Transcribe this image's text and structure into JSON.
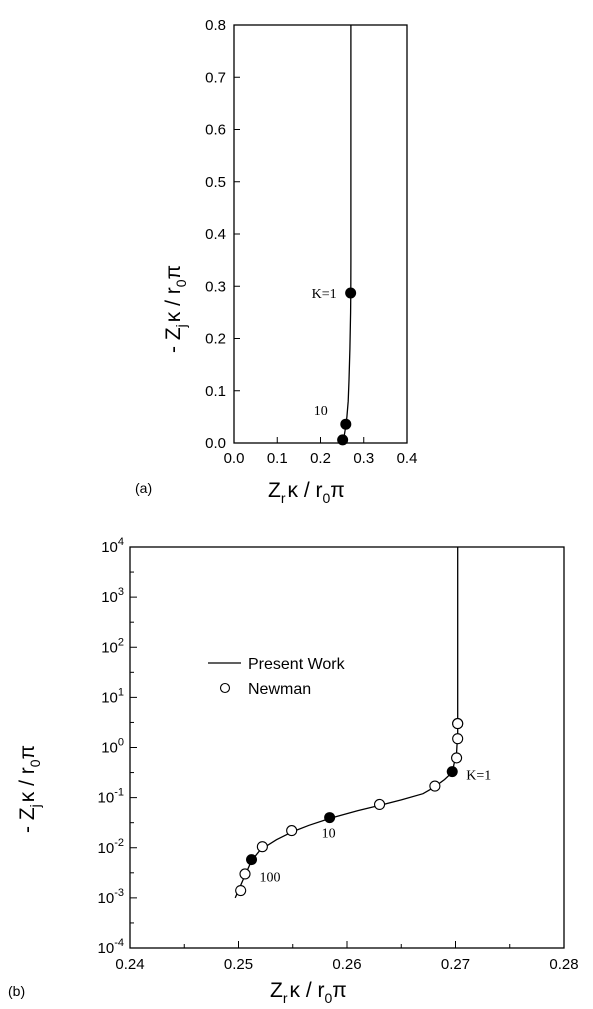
{
  "chart_data": [
    {
      "type": "line",
      "panel_label": "(a)",
      "xlim": [
        0.0,
        0.4
      ],
      "ylim": [
        0.0,
        0.8
      ],
      "x_ticks": [
        "0.0",
        "0.1",
        "0.2",
        "0.3",
        "0.4"
      ],
      "y_ticks": [
        "0.0",
        "0.1",
        "0.2",
        "0.3",
        "0.4",
        "0.5",
        "0.6",
        "0.7",
        "0.8"
      ],
      "xlabel": {
        "main": "Z",
        "sub": "r",
        "rest": "κ / r",
        "sub2": "0",
        "tail": "π"
      },
      "ylabel": {
        "main": "- Z",
        "sub": "j",
        "rest": "κ / r",
        "sub2": "0",
        "tail": "π"
      },
      "series": [
        {
          "style": "line",
          "x": [
            0.249,
            0.252,
            0.255,
            0.258,
            0.261,
            0.264,
            0.266,
            0.268,
            0.2695,
            0.27,
            0.2702,
            0.2703,
            0.2703,
            0.2703
          ],
          "y": [
            0.0,
            0.005,
            0.015,
            0.03,
            0.05,
            0.08,
            0.12,
            0.18,
            0.25,
            0.29,
            0.35,
            0.5,
            0.65,
            0.8
          ]
        },
        {
          "style": "filled-markers",
          "x": [
            0.2697,
            0.2585,
            0.2512
          ],
          "y": [
            0.287,
            0.036,
            0.006
          ]
        }
      ],
      "annotations": [
        {
          "text": "K=1",
          "x": 0.2697,
          "y": 0.287
        },
        {
          "text": "10",
          "x": 0.2585,
          "y": 0.036
        }
      ]
    },
    {
      "type": "line",
      "panel_label": "(b)",
      "xlim": [
        0.24,
        0.28
      ],
      "ylim": [
        0.0001,
        10000
      ],
      "yscale": "log",
      "x_ticks": [
        "0.24",
        "0.25",
        "0.26",
        "0.27",
        "0.28"
      ],
      "y_ticks": [
        {
          "base": "10",
          "exp": "-4"
        },
        {
          "base": "10",
          "exp": "-3"
        },
        {
          "base": "10",
          "exp": "-2"
        },
        {
          "base": "10",
          "exp": "-1"
        },
        {
          "base": "10",
          "exp": "0"
        },
        {
          "base": "10",
          "exp": "1"
        },
        {
          "base": "10",
          "exp": "2"
        },
        {
          "base": "10",
          "exp": "3"
        },
        {
          "base": "10",
          "exp": "4"
        }
      ],
      "xlabel": {
        "main": "Z",
        "sub": "r",
        "rest": "κ / r",
        "sub2": "0",
        "tail": "π"
      },
      "ylabel": {
        "main": "- Z",
        "sub": "j",
        "rest": "κ / r",
        "sub2": "0",
        "tail": "π"
      },
      "legend": {
        "placement": "upper-left",
        "items": [
          {
            "label": "Present Work",
            "marker": "line"
          },
          {
            "label": "Newman",
            "marker": "open-circle"
          }
        ]
      },
      "series": [
        {
          "name": "Present Work",
          "style": "line",
          "x": [
            0.2497,
            0.2505,
            0.2512,
            0.252,
            0.2535,
            0.255,
            0.2565,
            0.2585,
            0.261,
            0.263,
            0.265,
            0.267,
            0.268,
            0.269,
            0.2697,
            0.2701,
            0.2702,
            0.2702,
            0.2702,
            0.2702
          ],
          "y": [
            0.001,
            0.0025,
            0.0055,
            0.009,
            0.0145,
            0.021,
            0.028,
            0.039,
            0.055,
            0.07,
            0.09,
            0.12,
            0.16,
            0.23,
            0.32,
            0.8,
            2,
            10,
            100,
            10000
          ]
        },
        {
          "name": "Newman",
          "style": "open-markers",
          "x": [
            0.2502,
            0.2506,
            0.2522,
            0.2549,
            0.263,
            0.2681,
            0.2701,
            0.2702,
            0.2702,
            0.2702
          ],
          "y": [
            0.0014,
            0.003,
            0.0105,
            0.022,
            0.073,
            0.17,
            0.62,
            1.5,
            3.0,
            3.0
          ]
        },
        {
          "style": "filled-markers",
          "x": [
            0.2697,
            0.2584,
            0.2512
          ],
          "y": [
            0.33,
            0.04,
            0.0058
          ]
        }
      ],
      "annotations": [
        {
          "text": "K=1",
          "x": 0.2697,
          "y": 0.33
        },
        {
          "text": "10",
          "x": 0.2584,
          "y": 0.04
        },
        {
          "text": "100",
          "x": 0.2512,
          "y": 0.0058
        }
      ]
    }
  ]
}
